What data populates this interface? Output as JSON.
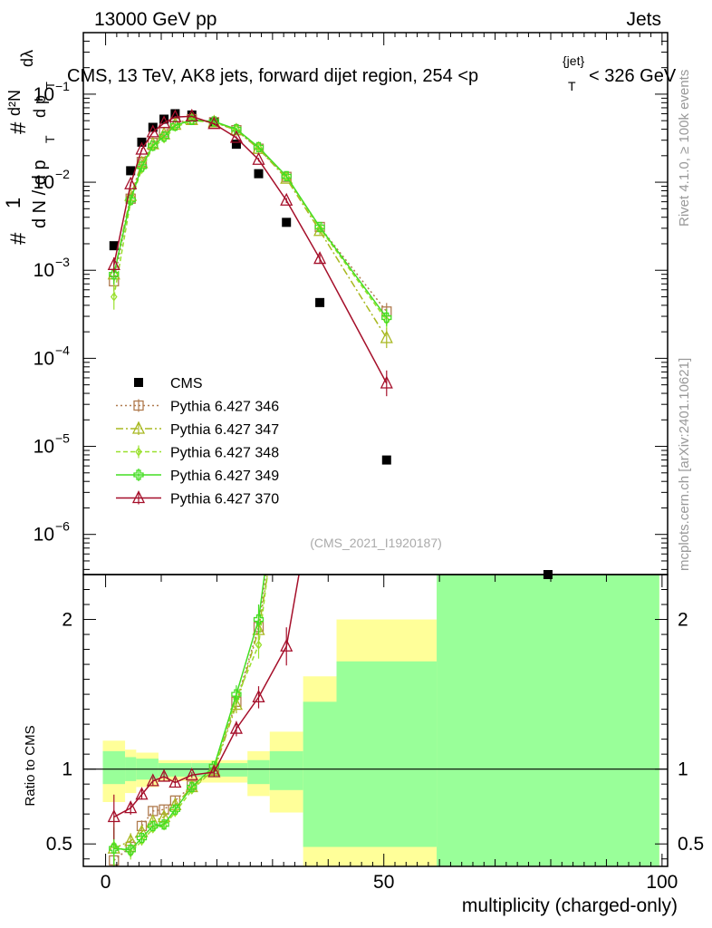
{
  "header": {
    "left": "13000 GeV pp",
    "right": "Jets"
  },
  "side_labels": {
    "rivet": "Rivet 4.1.0, ≥ 100k events",
    "mcplots": "mcplots.cern.ch [arXiv:2401.10621]"
  },
  "chart_data": {
    "type": "line",
    "title": "CMS, 13 TeV, AK8 jets, forward dijet region, 254 <p_T^{jet}< 326 GeV",
    "title_parts": {
      "main": "CMS, 13 TeV, AK8 jets, forward dijet region, 254 <p",
      "sub": "T",
      "sup": "{jet}",
      "tail": "< 326 GeV"
    },
    "analysis_label": "(CMS_2021_I1920187)",
    "xlabel": "multiplicity (charged-only)",
    "ylabel": "1/N dN/dλ (per p_T)",
    "ylabel_parts": {
      "num": "1",
      "hash": "#",
      "frac_num": "d²N",
      "frac_den": "d p",
      "sub": "T",
      "dlambda": "dλ",
      "den": "d N / d p"
    },
    "ratio_ylabel": "Ratio to CMS",
    "xlim": [
      -4,
      101
    ],
    "ylim_log": [
      3.5e-07,
      0.5
    ],
    "ratio_ylim": [
      0.35,
      2.3
    ],
    "x_ticks": [
      0,
      50,
      100
    ],
    "y_ticks": [
      {
        "value": 1e-06,
        "base": "10",
        "exp": "−6"
      },
      {
        "value": 1e-05,
        "base": "10",
        "exp": "−5"
      },
      {
        "value": 0.0001,
        "base": "10",
        "exp": "−4"
      },
      {
        "value": 0.001,
        "base": "10",
        "exp": "−3"
      },
      {
        "value": 0.01,
        "base": "10",
        "exp": "−2"
      },
      {
        "value": 0.1,
        "base": "10",
        "exp": "−1"
      }
    ],
    "ratio_ticks": [
      {
        "value": 0.5,
        "label": "0.5"
      },
      {
        "value": 1,
        "label": "1"
      },
      {
        "value": 2,
        "label": "2"
      }
    ],
    "bands": [
      {
        "x0": -0.5,
        "x1": 3.5,
        "g0": 0.9,
        "g1": 1.12,
        "y0": 0.78,
        "y1": 1.19
      },
      {
        "x0": 3.5,
        "x1": 5.5,
        "g0": 0.92,
        "g1": 1.08,
        "y0": 0.84,
        "y1": 1.13
      },
      {
        "x0": 5.5,
        "x1": 9.5,
        "g0": 0.93,
        "g1": 1.07,
        "y0": 0.88,
        "y1": 1.11
      },
      {
        "x0": 9.5,
        "x1": 15.5,
        "g0": 0.95,
        "g1": 1.04,
        "y0": 0.92,
        "y1": 1.06
      },
      {
        "x0": 15.5,
        "x1": 25.5,
        "g0": 0.95,
        "g1": 1.04,
        "y0": 0.91,
        "y1": 1.06
      },
      {
        "x0": 25.5,
        "x1": 29.5,
        "g0": 0.9,
        "g1": 1.06,
        "y0": 0.82,
        "y1": 1.12
      },
      {
        "x0": 29.5,
        "x1": 35.5,
        "g0": 0.86,
        "g1": 1.12,
        "y0": 0.71,
        "y1": 1.25
      },
      {
        "x0": 35.5,
        "x1": 41.5,
        "g0": 0.48,
        "g1": 1.45,
        "y0": 0.35,
        "y1": 1.62
      },
      {
        "x0": 41.5,
        "x1": 59.5,
        "g0": 0.48,
        "g1": 1.72,
        "y0": 0.35,
        "y1": 2.0
      },
      {
        "x0": 59.5,
        "x1": 99.5,
        "g0": 0.35,
        "g1": 2.3,
        "y0": 0.35,
        "y1": 2.3
      }
    ],
    "series": [
      {
        "name": "CMS",
        "color": "#000000",
        "marker": "square",
        "dash": "none",
        "x": [
          1.5,
          4.5,
          6.5,
          8.5,
          10.5,
          12.5,
          15.5,
          19.5,
          23.5,
          27.5,
          32.5,
          38.5,
          50.5
        ],
        "y": [
          0.0019,
          0.0135,
          0.0285,
          0.042,
          0.052,
          0.06,
          0.058,
          0.048,
          0.027,
          0.0125,
          0.0035,
          0.00043,
          7e-06
        ],
        "ratio": [
          1,
          1,
          1,
          1,
          1,
          1,
          1,
          1,
          1,
          1,
          1,
          1,
          1
        ]
      },
      {
        "name": "Pythia 6.427 346",
        "color": "#b07b4f",
        "marker": "square-open",
        "dash": "2,3",
        "x": [
          1.5,
          4.5,
          6.5,
          8.5,
          10.5,
          12.5,
          15.5,
          19.5,
          23.5,
          27.5,
          32.5,
          38.5,
          50.5
        ],
        "y": [
          0.00075,
          0.0065,
          0.017,
          0.028,
          0.037,
          0.047,
          0.052,
          0.048,
          0.039,
          0.024,
          0.0115,
          0.0031,
          0.00034
        ],
        "ratio": [
          0.39,
          0.48,
          0.62,
          0.72,
          0.73,
          0.79,
          0.89,
          1.0,
          1.45,
          1.95,
          3.3,
          7.2,
          49
        ],
        "yerr_frac": [
          0.3,
          0.1,
          0.06,
          0.04,
          0.04,
          0.04,
          0.03,
          0.03,
          0.04,
          0.05,
          0.06,
          0.1,
          0.25
        ]
      },
      {
        "name": "Pythia 6.427 347",
        "color": "#a8b820",
        "marker": "triangle-open",
        "dash": "8,3,2,3",
        "x": [
          1.5,
          4.5,
          6.5,
          8.5,
          10.5,
          12.5,
          15.5,
          19.5,
          23.5,
          27.5,
          32.5,
          38.5,
          50.5
        ],
        "y": [
          0.0009,
          0.007,
          0.0165,
          0.027,
          0.035,
          0.045,
          0.051,
          0.048,
          0.039,
          0.024,
          0.011,
          0.0028,
          0.00017
        ],
        "ratio": [
          0.47,
          0.52,
          0.58,
          0.65,
          0.68,
          0.76,
          0.88,
          0.99,
          1.43,
          1.93,
          3.1,
          6.5,
          24
        ],
        "yerr_frac": [
          0.3,
          0.1,
          0.06,
          0.04,
          0.04,
          0.04,
          0.03,
          0.03,
          0.04,
          0.05,
          0.06,
          0.1,
          0.3
        ]
      },
      {
        "name": "Pythia 6.427 348",
        "color": "#99e02c",
        "marker": "diamond-open",
        "dash": "5,3",
        "x": [
          1.5,
          4.5,
          6.5,
          8.5,
          10.5,
          12.5,
          15.5,
          19.5,
          23.5,
          27.5,
          32.5,
          38.5,
          50.5
        ],
        "y": [
          0.0005,
          0.006,
          0.014,
          0.025,
          0.031,
          0.042,
          0.05,
          0.048,
          0.04,
          0.025,
          0.0115,
          0.003,
          0.00027
        ],
        "ratio": [
          0.49,
          0.44,
          0.52,
          0.6,
          0.62,
          0.71,
          0.86,
          1.0,
          1.47,
          1.83,
          3.3,
          7.0,
          38
        ],
        "yerr_frac": [
          0.4,
          0.1,
          0.06,
          0.04,
          0.04,
          0.04,
          0.03,
          0.03,
          0.04,
          0.05,
          0.06,
          0.1,
          0.25
        ]
      },
      {
        "name": "Pythia 6.427 349",
        "color": "#44dd22",
        "marker": "plus-open",
        "dash": "none",
        "x": [
          1.5,
          4.5,
          6.5,
          8.5,
          10.5,
          12.5,
          15.5,
          19.5,
          23.5,
          27.5,
          32.5,
          38.5,
          50.5
        ],
        "y": [
          0.0009,
          0.0063,
          0.015,
          0.026,
          0.033,
          0.044,
          0.051,
          0.049,
          0.04,
          0.025,
          0.0117,
          0.0031,
          0.00029
        ],
        "ratio": [
          0.47,
          0.46,
          0.54,
          0.62,
          0.63,
          0.73,
          0.88,
          1.02,
          1.5,
          2.0,
          3.4,
          7.3,
          42
        ],
        "yerr_frac": [
          0.3,
          0.1,
          0.06,
          0.04,
          0.04,
          0.04,
          0.03,
          0.03,
          0.04,
          0.05,
          0.06,
          0.1,
          0.25
        ]
      },
      {
        "name": "Pythia 6.427 370",
        "color": "#a50f2a",
        "marker": "triangle-open",
        "dash": "none",
        "x": [
          1.5,
          4.5,
          6.5,
          8.5,
          10.5,
          12.5,
          15.5,
          19.5,
          23.5,
          27.5,
          32.5,
          38.5,
          50.5
        ],
        "y": [
          0.00115,
          0.0095,
          0.0235,
          0.037,
          0.047,
          0.055,
          0.056,
          0.046,
          0.032,
          0.018,
          0.0062,
          0.00135,
          5.2e-05
        ],
        "ratio": [
          0.68,
          0.74,
          0.83,
          0.92,
          0.95,
          0.91,
          0.96,
          0.98,
          1.27,
          1.48,
          1.82,
          3.1,
          7.5
        ],
        "yerr_frac": [
          0.22,
          0.06,
          0.04,
          0.03,
          0.03,
          0.03,
          0.02,
          0.03,
          0.04,
          0.05,
          0.07,
          0.12,
          0.4
        ]
      }
    ]
  }
}
